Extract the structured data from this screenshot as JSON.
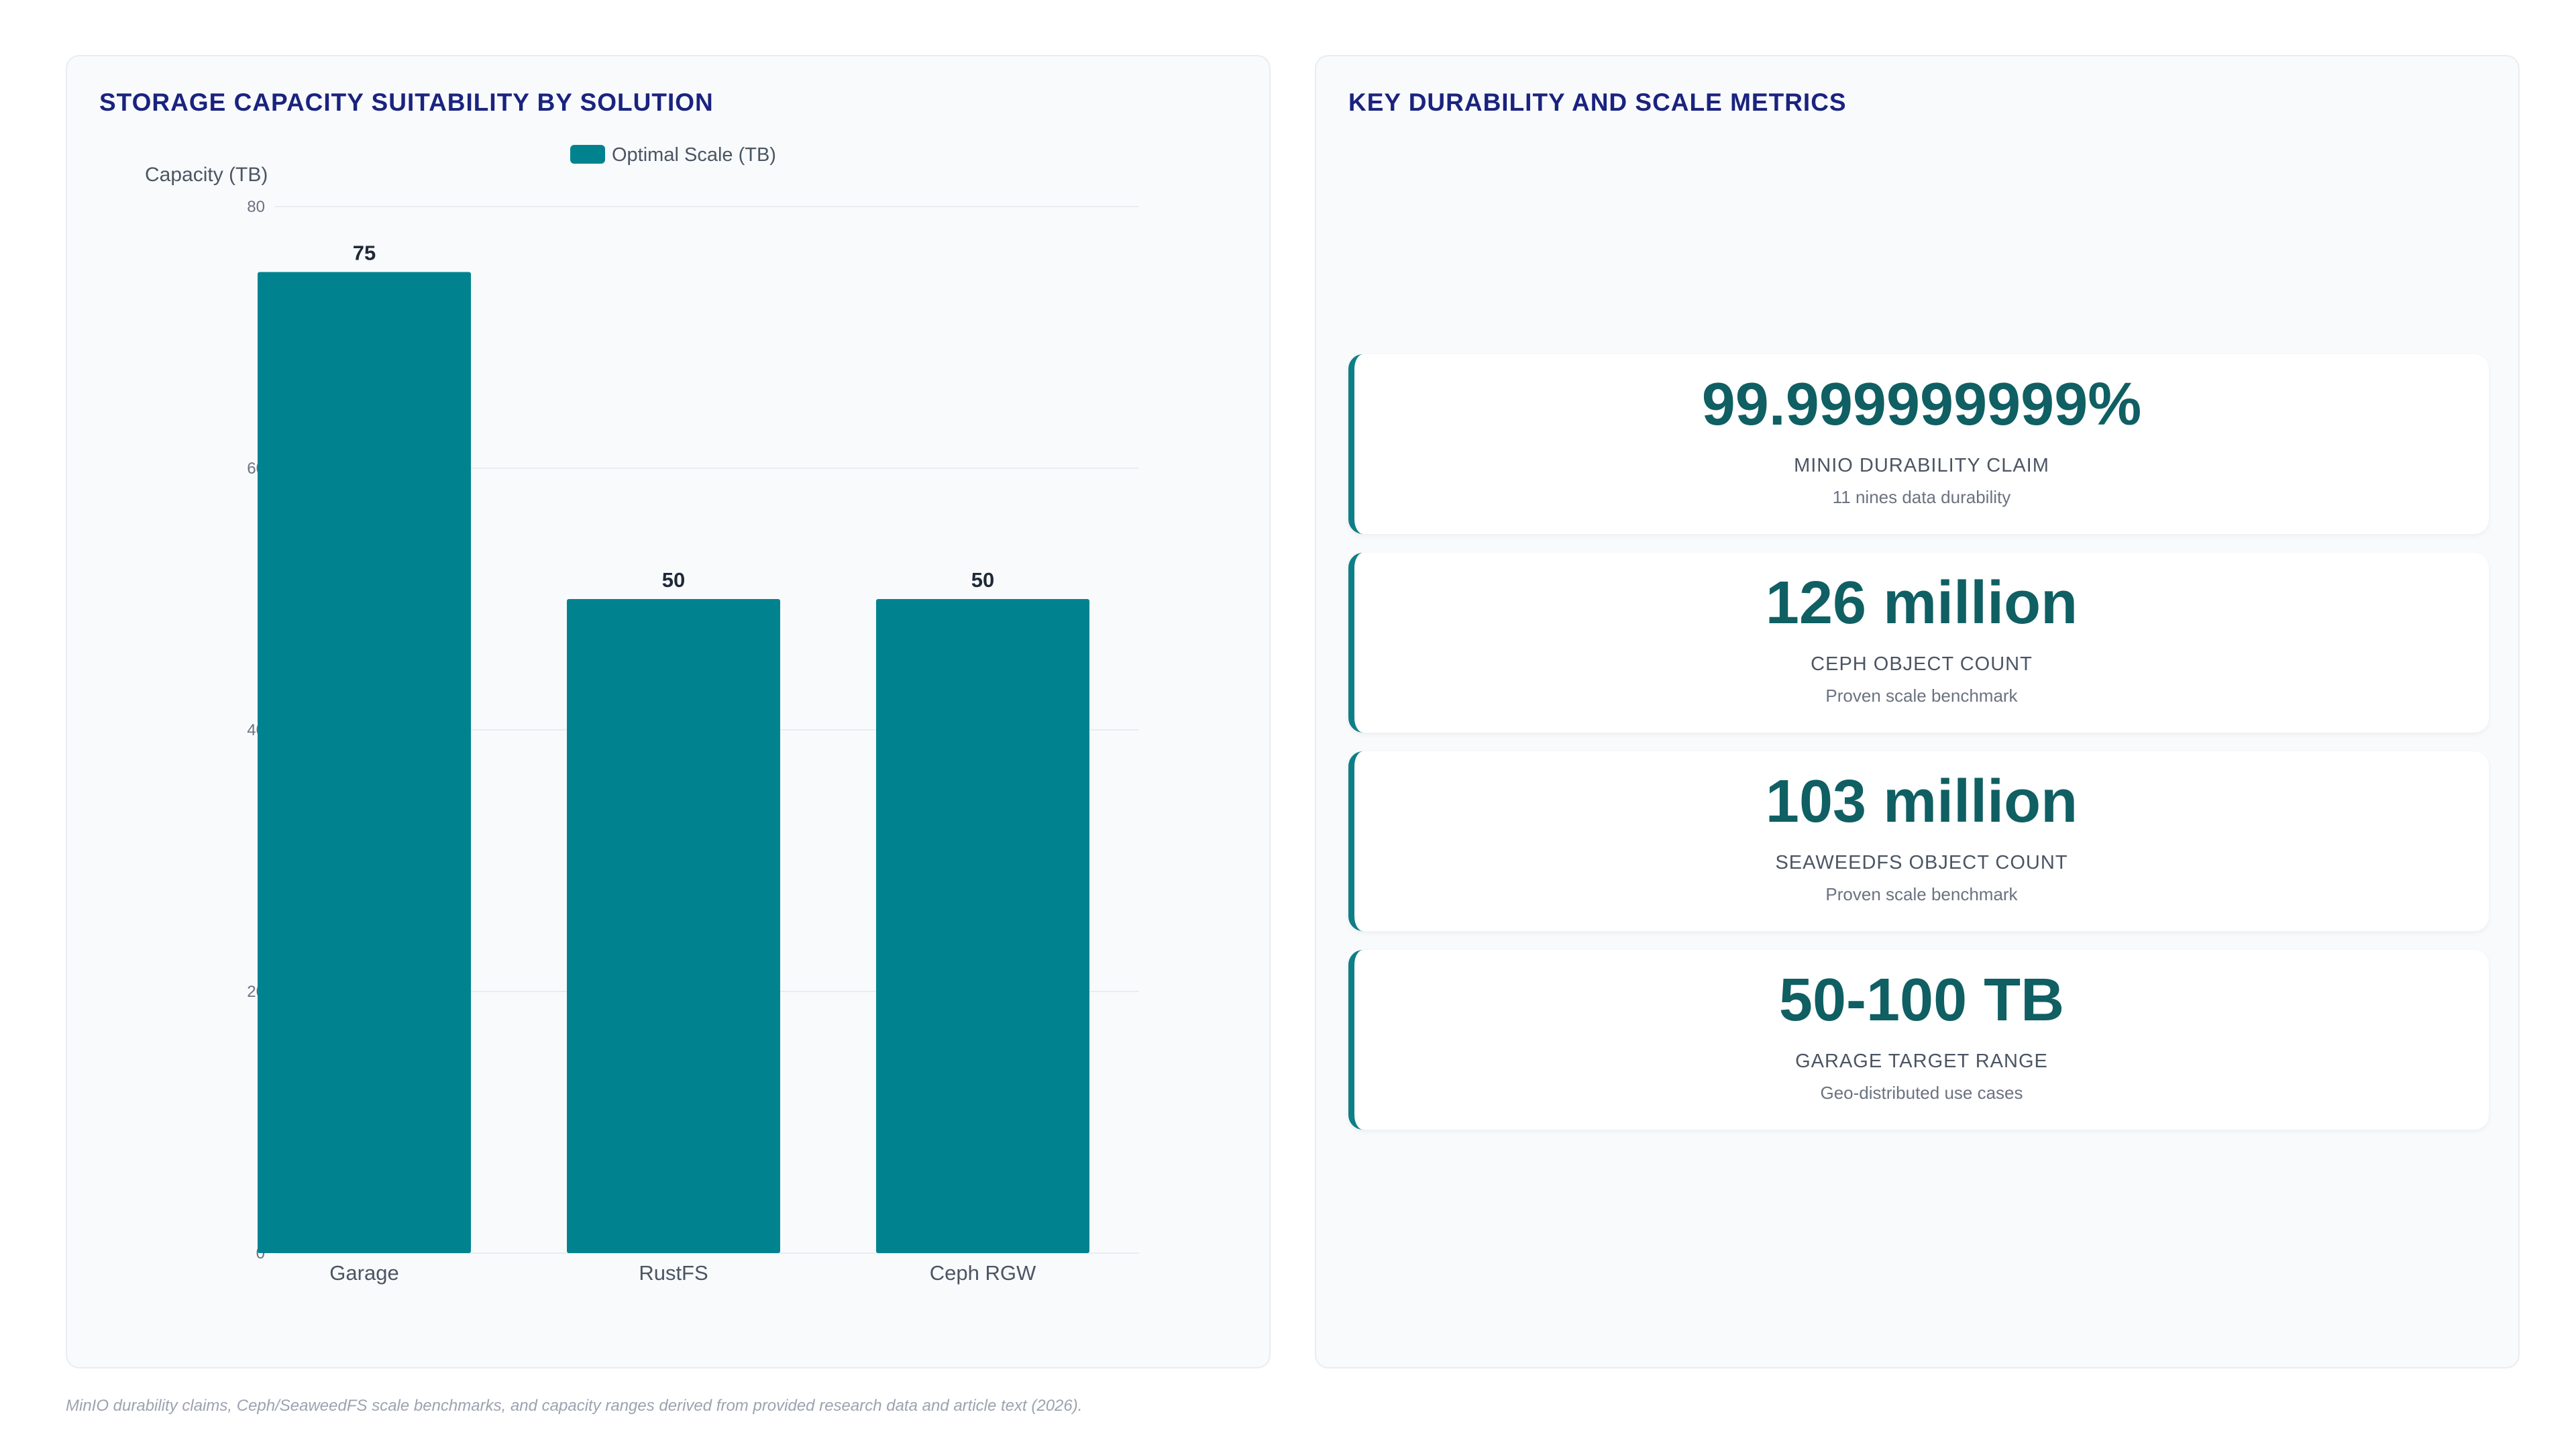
{
  "chart_panel": {
    "title": "STORAGE CAPACITY SUITABILITY BY SOLUTION"
  },
  "chart_data": {
    "type": "bar",
    "title": "STORAGE CAPACITY SUITABILITY BY SOLUTION",
    "categories": [
      "Garage",
      "RustFS",
      "Ceph RGW"
    ],
    "series": [
      {
        "name": "Optimal Scale (TB)",
        "values": [
          75,
          50,
          50
        ]
      }
    ],
    "ylabel": "Capacity (TB)",
    "xlabel": "",
    "ylim": [
      0,
      80
    ],
    "yticks": [
      0,
      20,
      40,
      60,
      80
    ],
    "grid": true,
    "legend": "top-center",
    "colors": {
      "bar": "#00838f"
    }
  },
  "metrics_panel": {
    "title": "KEY DURABILITY AND SCALE METRICS",
    "cards": [
      {
        "value": "99.999999999%",
        "label": "MINIO DURABILITY CLAIM",
        "sub": "11 nines data durability"
      },
      {
        "value": "126 million",
        "label": "CEPH OBJECT COUNT",
        "sub": "Proven scale benchmark"
      },
      {
        "value": "103 million",
        "label": "SEAWEEDFS OBJECT COUNT",
        "sub": "Proven scale benchmark"
      },
      {
        "value": "50-100 TB",
        "label": "GARAGE TARGET RANGE",
        "sub": "Geo-distributed use cases"
      }
    ]
  },
  "footnote": "MinIO durability claims, Ceph/SeaweedFS scale benchmarks, and capacity ranges derived from provided research data and article text (2026)."
}
